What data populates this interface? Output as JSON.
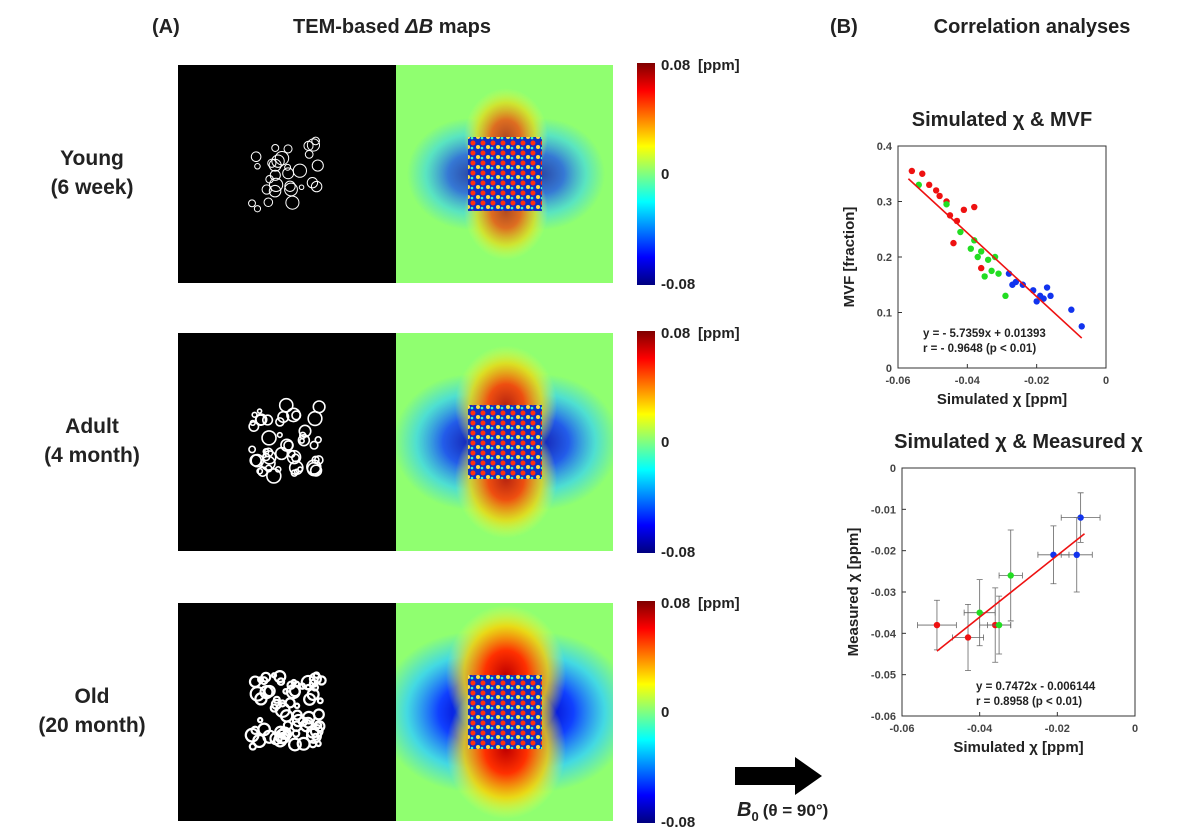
{
  "panel_a": {
    "label": "(A)",
    "title_prefix": "TEM-based",
    "title_symbol": "ΔB",
    "title_suffix": "maps",
    "rows": [
      {
        "name": "Young",
        "age": "(6 week)"
      },
      {
        "name": "Adult",
        "age": "(4 month)"
      },
      {
        "name": "Old",
        "age": "(20 month)"
      }
    ],
    "colorbar": {
      "max_label": "0.08",
      "unit": "[ppm]",
      "mid_label": "0",
      "min_label": "-0.08"
    },
    "field": {
      "symbol": "B",
      "sub": "0",
      "angle": "(θ = 90°)"
    }
  },
  "panel_b": {
    "label": "(B)",
    "title": "Correlation analyses"
  },
  "chart_data": [
    {
      "type": "scatter",
      "title": "Simulated χ & MVF",
      "xlabel": "Simulated χ [ppm]",
      "ylabel": "MVF [fraction]",
      "xlim": [
        -0.06,
        0
      ],
      "xticks": [
        -0.06,
        -0.04,
        -0.02,
        0
      ],
      "ylim": [
        0,
        0.4
      ],
      "yticks": [
        0,
        0.1,
        0.2,
        0.3,
        0.4
      ],
      "series": [
        {
          "color": "#ee1111",
          "x": [
            -0.056,
            -0.053,
            -0.051,
            -0.049,
            -0.048,
            -0.046,
            -0.045,
            -0.044,
            -0.043,
            -0.041,
            -0.038,
            -0.036
          ],
          "values": [
            0.355,
            0.35,
            0.33,
            0.32,
            0.31,
            0.3,
            0.275,
            0.225,
            0.265,
            0.285,
            0.29,
            0.18
          ]
        },
        {
          "color": "#22dd22",
          "x": [
            -0.054,
            -0.046,
            -0.042,
            -0.039,
            -0.038,
            -0.037,
            -0.036,
            -0.035,
            -0.034,
            -0.033,
            -0.032,
            -0.031,
            -0.029
          ],
          "values": [
            0.33,
            0.295,
            0.245,
            0.215,
            0.23,
            0.2,
            0.21,
            0.165,
            0.195,
            0.175,
            0.2,
            0.17,
            0.13
          ]
        },
        {
          "color": "#1133ee",
          "x": [
            -0.028,
            -0.027,
            -0.026,
            -0.024,
            -0.021,
            -0.02,
            -0.019,
            -0.018,
            -0.017,
            -0.016,
            -0.01,
            -0.007
          ],
          "values": [
            0.17,
            0.15,
            0.155,
            0.15,
            0.14,
            0.12,
            0.13,
            0.125,
            0.145,
            0.13,
            0.105,
            0.075
          ]
        }
      ],
      "fit": {
        "color": "#ee1111",
        "x": [
          -0.057,
          -0.007
        ],
        "y": [
          0.341,
          0.054
        ]
      },
      "annotations": [
        "y = - 5.7359x + 0.01393",
        "r = - 0.9648 (p < 0.01)"
      ]
    },
    {
      "type": "scatter",
      "title": "Simulated χ & Measured χ",
      "xlabel": "Simulated χ [ppm]",
      "ylabel": "Measured χ [ppm]",
      "xlim": [
        -0.06,
        0
      ],
      "xticks": [
        -0.06,
        -0.04,
        -0.02,
        0
      ],
      "ylim": [
        -0.06,
        0
      ],
      "yticks": [
        -0.06,
        -0.05,
        -0.04,
        -0.03,
        -0.02,
        -0.01,
        0
      ],
      "series": [
        {
          "color": "#ee1111",
          "x": [
            -0.051,
            -0.043,
            -0.036
          ],
          "values": [
            -0.038,
            -0.041,
            -0.038
          ],
          "xerr": [
            0.005,
            0.004,
            0.004
          ],
          "yerr": [
            0.006,
            0.008,
            0.009
          ]
        },
        {
          "color": "#22dd22",
          "x": [
            -0.04,
            -0.035,
            -0.032
          ],
          "values": [
            -0.035,
            -0.038,
            -0.026
          ],
          "xerr": [
            0.004,
            0.003,
            0.003
          ],
          "yerr": [
            0.008,
            0.007,
            0.011
          ]
        },
        {
          "color": "#1133ee",
          "x": [
            -0.021,
            -0.014,
            -0.015
          ],
          "values": [
            -0.021,
            -0.012,
            -0.021
          ],
          "xerr": [
            0.004,
            0.005,
            0.004
          ],
          "yerr": [
            0.007,
            0.006,
            0.009
          ]
        }
      ],
      "fit": {
        "color": "#ee1111",
        "x": [
          -0.051,
          -0.013
        ],
        "y": [
          -0.0443,
          -0.0159
        ]
      },
      "annotations": [
        "y = 0.7472x - 0.006144",
        "r = 0.8958 (p < 0.01)"
      ]
    }
  ]
}
